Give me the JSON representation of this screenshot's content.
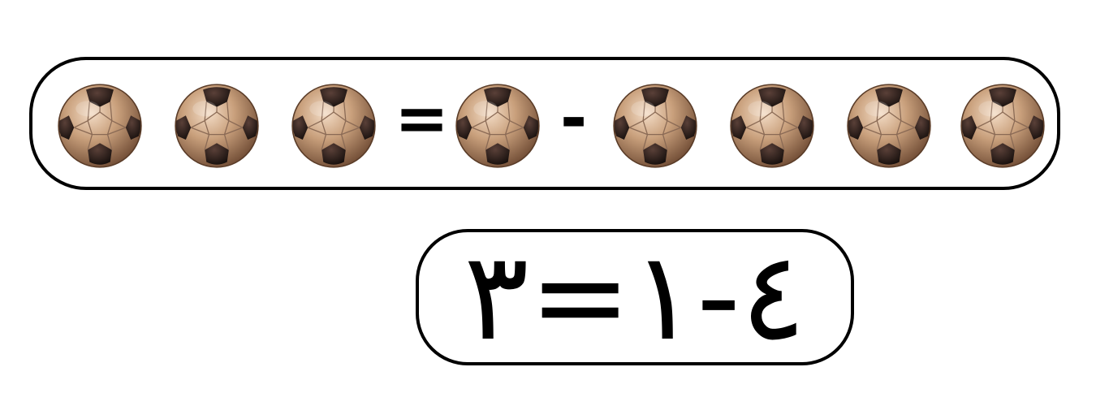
{
  "ball_row": {
    "balls_left": 3,
    "balls_right_first": 1,
    "balls_right_rest": 4,
    "ball_icon": "soccer-ball-icon",
    "equals_symbol": "=",
    "minus_symbol": "-",
    "ball_color": "#c9a07c",
    "ball_panel_color": "#1b1210"
  },
  "equation": {
    "text": "٣=١-٤"
  }
}
